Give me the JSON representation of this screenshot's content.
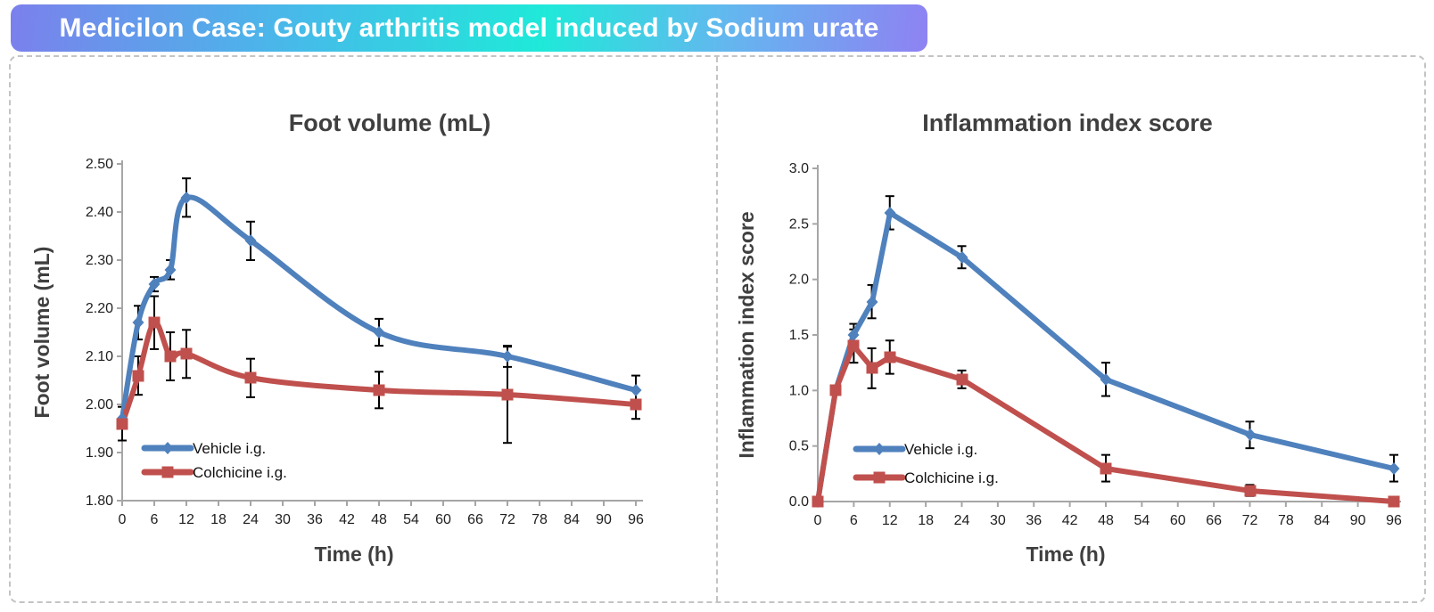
{
  "banner": {
    "text": "Medicilon Case: Gouty arthritis model induced by Sodium urate",
    "gradient_colors": [
      "#7b80ec",
      "#45bce9",
      "#1fe9d9",
      "#63b7ef",
      "#8e82f2"
    ],
    "text_color": "#ffffff"
  },
  "colors": {
    "vehicle_blue": "#4f81bd",
    "colchicine_red": "#c0504d",
    "axis_gray": "#a6a6a6",
    "error_bar_black": "#000000",
    "title_gray": "#3f3f3f",
    "panel_border_gray": "#c4c4c4"
  },
  "chart_data": [
    {
      "type": "line",
      "title": "Foot volume (mL)",
      "xlabel": "Time (h)",
      "ylabel": "Foot volume (mL)",
      "xlim": [
        0,
        96
      ],
      "xticks": [
        0,
        6,
        12,
        18,
        24,
        30,
        36,
        42,
        48,
        54,
        60,
        66,
        72,
        78,
        84,
        90,
        96
      ],
      "ylim": [
        1.8,
        2.5
      ],
      "ytick_values": [
        1.8,
        1.9,
        2.0,
        2.1,
        2.2,
        2.3,
        2.4,
        2.5
      ],
      "ytick_labels": [
        "1.80",
        "1.90",
        "2.00",
        "2.10",
        "2.20",
        "2.30",
        "2.40",
        "2.50"
      ],
      "grid": false,
      "smooth": true,
      "legend_position": "inside-lower-left",
      "x": [
        0,
        3,
        6,
        9,
        12,
        24,
        48,
        72,
        96
      ],
      "series": [
        {
          "name": "Vehicle i.g.",
          "color": "#4f81bd",
          "marker": "diamond",
          "values": [
            1.97,
            2.17,
            2.25,
            2.28,
            2.43,
            2.34,
            2.15,
            2.1,
            2.03
          ],
          "errors": [
            0,
            0.035,
            0.015,
            0.02,
            0.04,
            0.04,
            0.028,
            0.022,
            0.03
          ]
        },
        {
          "name": "Colchicine i.g.",
          "color": "#c0504d",
          "marker": "square",
          "values": [
            1.96,
            2.06,
            2.17,
            2.1,
            2.105,
            2.055,
            2.03,
            2.02,
            2.0
          ],
          "errors": [
            0.035,
            0.04,
            0.055,
            0.05,
            0.05,
            0.04,
            0.038,
            0.1,
            0.03
          ]
        }
      ]
    },
    {
      "type": "line",
      "title": "Inflammation index score",
      "xlabel": "Time (h)",
      "ylabel": "Inflammation index score",
      "xlim": [
        0,
        96
      ],
      "xticks": [
        0,
        6,
        12,
        18,
        24,
        30,
        36,
        42,
        48,
        54,
        60,
        66,
        72,
        78,
        84,
        90,
        96
      ],
      "ylim": [
        0.0,
        3.0
      ],
      "ytick_values": [
        0.0,
        0.5,
        1.0,
        1.5,
        2.0,
        2.5,
        3.0
      ],
      "ytick_labels": [
        "0.0",
        "0.5",
        "1.0",
        "1.5",
        "2.0",
        "2.5",
        "3.0"
      ],
      "grid": false,
      "smooth": false,
      "legend_position": "inside-lower-left",
      "x": [
        0,
        3,
        6,
        9,
        12,
        24,
        48,
        72,
        96
      ],
      "series": [
        {
          "name": "Vehicle i.g.",
          "color": "#4f81bd",
          "marker": "diamond",
          "values": [
            0.0,
            1.0,
            1.5,
            1.8,
            2.6,
            2.2,
            1.1,
            0.6,
            0.3
          ],
          "errors": [
            0,
            0,
            0.1,
            0.15,
            0.15,
            0.1,
            0.15,
            0.12,
            0.12
          ]
        },
        {
          "name": "Colchicine i.g.",
          "color": "#c0504d",
          "marker": "square",
          "values": [
            0.0,
            1.0,
            1.4,
            1.2,
            1.3,
            1.1,
            0.3,
            0.1,
            0.0
          ],
          "errors": [
            0,
            0,
            0.15,
            0.18,
            0.15,
            0.08,
            0.12,
            0.05,
            0.04
          ]
        }
      ]
    }
  ]
}
